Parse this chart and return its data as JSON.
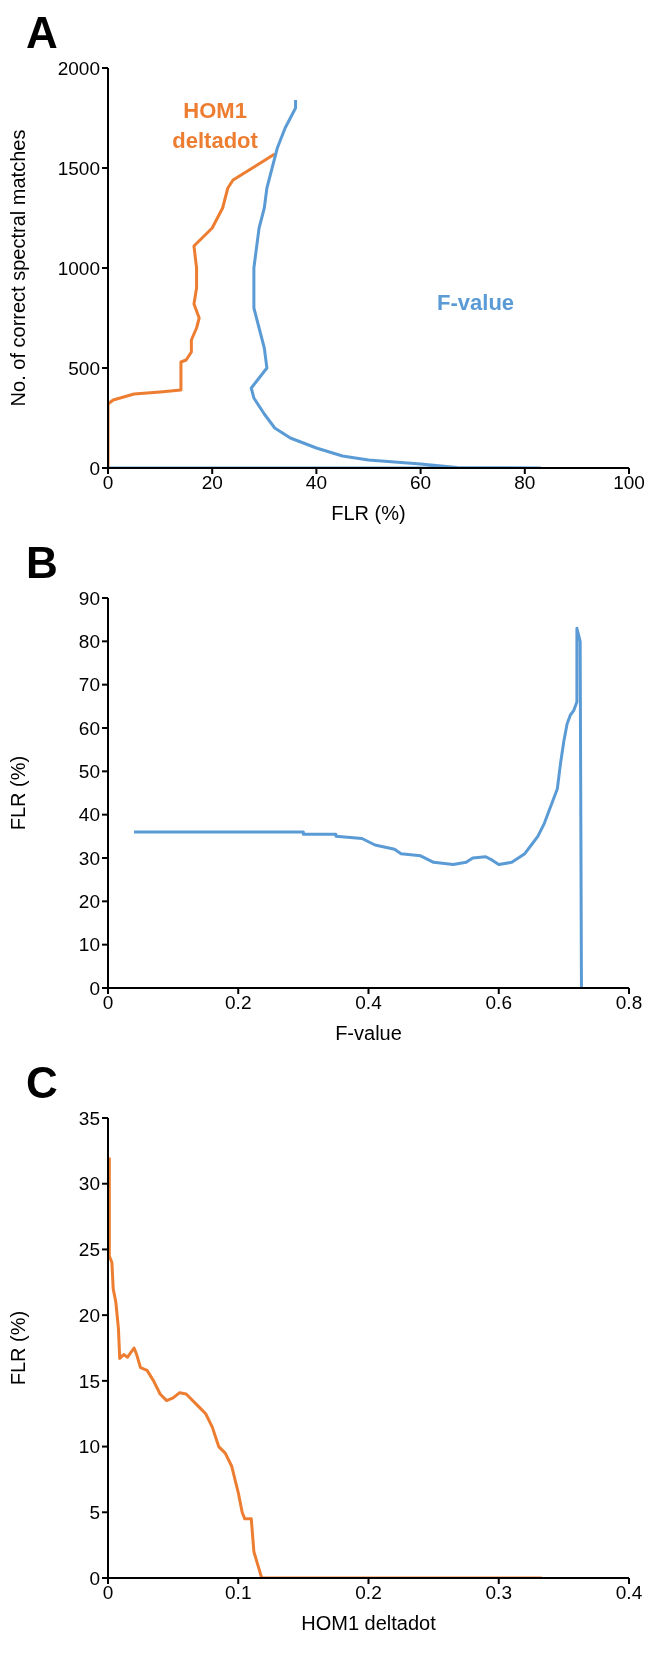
{
  "chart_data": [
    {
      "type": "line",
      "title": "A",
      "xlabel": "FLR (%)",
      "ylabel": "No. of correct spectral matches",
      "xlim": [
        0,
        100
      ],
      "xticks": [
        0,
        20,
        40,
        60,
        80,
        100
      ],
      "ylim": [
        0,
        2000
      ],
      "yticks": [
        0,
        500,
        1000,
        1500,
        2000
      ],
      "marker": "none",
      "series": [
        {
          "name": "HOM1 deltadot",
          "color": "#ed7d31",
          "x": [
            0,
            0,
            1,
            5,
            10,
            14,
            14,
            15,
            16,
            16,
            17,
            17.5,
            16.5,
            17,
            17,
            16.5,
            20,
            21,
            22,
            23,
            24,
            32
          ],
          "values": [
            0,
            320,
            340,
            370,
            380,
            390,
            530,
            540,
            580,
            640,
            700,
            750,
            820,
            900,
            1000,
            1110,
            1200,
            1250,
            1300,
            1400,
            1440,
            1570
          ]
        },
        {
          "name": "F-value",
          "color": "#5b9bd5",
          "x": [
            0,
            83,
            67,
            60,
            50,
            45,
            40,
            35,
            32,
            30,
            28,
            27.5,
            29,
            30.5,
            30,
            29,
            28,
            28,
            28,
            28.5,
            29,
            30,
            30.5,
            31.5,
            32.5,
            34,
            36,
            36
          ],
          "values": [
            0,
            0,
            3,
            20,
            40,
            60,
            100,
            150,
            200,
            270,
            350,
            400,
            450,
            500,
            600,
            700,
            800,
            900,
            1000,
            1100,
            1200,
            1300,
            1400,
            1500,
            1600,
            1700,
            1800,
            1840
          ]
        }
      ]
    },
    {
      "type": "line",
      "title": "B",
      "xlabel": "F-value",
      "ylabel": "FLR (%)",
      "xlim": [
        0,
        0.8
      ],
      "xticks": [
        0,
        0.2,
        0.4,
        0.6,
        0.8
      ],
      "ylim": [
        0,
        90
      ],
      "yticks": [
        0,
        10,
        20,
        30,
        40,
        50,
        60,
        70,
        80,
        90
      ],
      "marker": "none",
      "series": [
        {
          "color": "#5b9bd5",
          "x": [
            0.04,
            0.3,
            0.3,
            0.35,
            0.35,
            0.39,
            0.41,
            0.44,
            0.45,
            0.48,
            0.5,
            0.53,
            0.55,
            0.56,
            0.58,
            0.59,
            0.6,
            0.62,
            0.64,
            0.65,
            0.66,
            0.67,
            0.68,
            0.69,
            0.695,
            0.7,
            0.705,
            0.71,
            0.715,
            0.72,
            0.72,
            0.725,
            0.727
          ],
          "values": [
            36,
            36,
            35.5,
            35.5,
            35,
            34.5,
            33,
            32,
            31,
            30.5,
            29,
            28.5,
            29,
            30,
            30.3,
            29.5,
            28.5,
            29,
            31,
            33,
            35,
            38,
            42,
            46,
            52,
            57,
            61,
            63,
            64,
            66,
            83,
            80,
            0
          ]
        }
      ]
    },
    {
      "type": "line",
      "title": "C",
      "xlabel": "HOM1 deltadot",
      "ylabel": "FLR (%)",
      "xlim": [
        0,
        0.4
      ],
      "xticks": [
        0,
        0.1,
        0.2,
        0.3,
        0.4
      ],
      "ylim": [
        0,
        35
      ],
      "yticks": [
        0,
        5,
        10,
        15,
        20,
        25,
        30,
        35
      ],
      "marker": "none",
      "series": [
        {
          "color": "#ed7d31",
          "x": [
            0.001,
            0.001,
            0.003,
            0.004,
            0.006,
            0.008,
            0.009,
            0.012,
            0.015,
            0.02,
            0.022,
            0.025,
            0.03,
            0.035,
            0.04,
            0.045,
            0.05,
            0.055,
            0.06,
            0.07,
            0.075,
            0.08,
            0.085,
            0.09,
            0.095,
            0.1,
            0.103,
            0.105,
            0.11,
            0.112,
            0.115,
            0.118,
            0.333
          ],
          "values": [
            32,
            24.5,
            24,
            22,
            21,
            19,
            16.7,
            17,
            16.8,
            17.5,
            17,
            16,
            15.8,
            15,
            14,
            13.5,
            13.7,
            14.1,
            14,
            13,
            12.5,
            11.5,
            10,
            9.5,
            8.5,
            6.5,
            5,
            4.5,
            4.5,
            2,
            1,
            0,
            0
          ]
        }
      ]
    }
  ]
}
